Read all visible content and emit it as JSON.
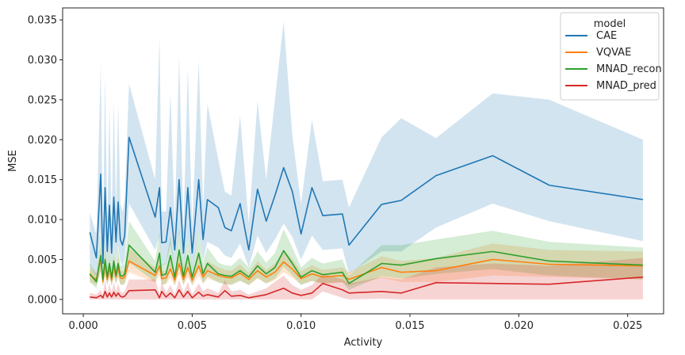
{
  "chart_data": {
    "type": "line",
    "title": "",
    "xlabel": "Activity",
    "ylabel": "MSE",
    "xlim": [
      -0.00095,
      0.02665
    ],
    "ylim": [
      -0.0018,
      0.0365
    ],
    "xticks": [
      0.0,
      0.005,
      0.01,
      0.015,
      0.02,
      0.025
    ],
    "xtick_labels": [
      "0.000",
      "0.005",
      "0.010",
      "0.015",
      "0.020",
      "0.025"
    ],
    "yticks": [
      0.0,
      0.005,
      0.01,
      0.015,
      0.02,
      0.025,
      0.03,
      0.035
    ],
    "ytick_labels": [
      "0.000",
      "0.005",
      "0.010",
      "0.015",
      "0.020",
      "0.025",
      "0.030",
      "0.035"
    ],
    "grid": false,
    "legend": {
      "title": "model",
      "position": "top-right"
    },
    "series": [
      {
        "name": "CAE",
        "color": "#1f77b4",
        "x": [
          0.0003,
          0.0006,
          0.0008,
          0.0009,
          0.001,
          0.0011,
          0.0012,
          0.0013,
          0.0014,
          0.0015,
          0.0016,
          0.0017,
          0.0018,
          0.0019,
          0.0021,
          0.0033,
          0.0035,
          0.0036,
          0.0038,
          0.004,
          0.0042,
          0.0044,
          0.0046,
          0.0048,
          0.005,
          0.0053,
          0.0055,
          0.0057,
          0.0062,
          0.0065,
          0.0068,
          0.0072,
          0.0076,
          0.008,
          0.0084,
          0.0088,
          0.0092,
          0.0096,
          0.01,
          0.0105,
          0.011,
          0.0119,
          0.0122,
          0.0137,
          0.0146,
          0.0162,
          0.0188,
          0.0214,
          0.0257
        ],
        "y": [
          0.0084,
          0.0052,
          0.0157,
          0.0045,
          0.014,
          0.006,
          0.0118,
          0.0058,
          0.0128,
          0.0072,
          0.0122,
          0.0075,
          0.0068,
          0.008,
          0.0203,
          0.0103,
          0.014,
          0.0071,
          0.0072,
          0.0115,
          0.0062,
          0.015,
          0.0058,
          0.014,
          0.0058,
          0.015,
          0.0075,
          0.0125,
          0.0115,
          0.009,
          0.0086,
          0.012,
          0.0062,
          0.0138,
          0.0098,
          0.013,
          0.0165,
          0.0135,
          0.0082,
          0.014,
          0.0105,
          0.0107,
          0.0068,
          0.0119,
          0.0124,
          0.0155,
          0.018,
          0.0143,
          0.0125
        ],
        "lower": [
          0.0042,
          0.003,
          0.0085,
          0.0028,
          0.0075,
          0.0035,
          0.0065,
          0.0035,
          0.007,
          0.0045,
          0.0068,
          0.0048,
          0.0042,
          0.005,
          0.012,
          0.0062,
          0.008,
          0.0042,
          0.0045,
          0.0068,
          0.004,
          0.0085,
          0.0036,
          0.008,
          0.0036,
          0.0085,
          0.0048,
          0.0072,
          0.0065,
          0.0055,
          0.0052,
          0.007,
          0.004,
          0.008,
          0.0058,
          0.0075,
          0.0095,
          0.0078,
          0.005,
          0.008,
          0.0062,
          0.0064,
          0.0032,
          0.006,
          0.006,
          0.009,
          0.012,
          0.0098,
          0.0073
        ],
        "upper": [
          0.0108,
          0.0082,
          0.0295,
          0.0075,
          0.028,
          0.0095,
          0.0245,
          0.0092,
          0.025,
          0.0115,
          0.0245,
          0.012,
          0.011,
          0.0125,
          0.027,
          0.015,
          0.033,
          0.011,
          0.011,
          0.026,
          0.0095,
          0.0305,
          0.009,
          0.029,
          0.009,
          0.03,
          0.0115,
          0.0245,
          0.0175,
          0.0135,
          0.013,
          0.023,
          0.0095,
          0.0248,
          0.015,
          0.025,
          0.0348,
          0.0205,
          0.012,
          0.0225,
          0.0148,
          0.015,
          0.0115,
          0.0203,
          0.0227,
          0.0202,
          0.0258,
          0.025,
          0.02
        ]
      },
      {
        "name": "VQVAE",
        "color": "#ff7f0e",
        "x": [
          0.0003,
          0.0006,
          0.0008,
          0.0009,
          0.001,
          0.0011,
          0.0012,
          0.0013,
          0.0014,
          0.0015,
          0.0016,
          0.0017,
          0.0018,
          0.0019,
          0.0021,
          0.0033,
          0.0035,
          0.0036,
          0.0038,
          0.004,
          0.0042,
          0.0044,
          0.0046,
          0.0048,
          0.005,
          0.0053,
          0.0055,
          0.0057,
          0.0062,
          0.0065,
          0.0068,
          0.0072,
          0.0076,
          0.008,
          0.0084,
          0.0088,
          0.0092,
          0.0096,
          0.01,
          0.0105,
          0.011,
          0.0119,
          0.0122,
          0.0137,
          0.0146,
          0.0162,
          0.0188,
          0.0214,
          0.0257
        ],
        "y": [
          0.003,
          0.0025,
          0.005,
          0.0022,
          0.0045,
          0.0025,
          0.004,
          0.0024,
          0.0042,
          0.0028,
          0.004,
          0.0027,
          0.0026,
          0.0028,
          0.0048,
          0.003,
          0.0042,
          0.0026,
          0.0027,
          0.0038,
          0.0024,
          0.0045,
          0.0025,
          0.004,
          0.0024,
          0.0042,
          0.0028,
          0.0036,
          0.003,
          0.0028,
          0.0027,
          0.0033,
          0.0025,
          0.0036,
          0.0028,
          0.0034,
          0.0047,
          0.0038,
          0.0026,
          0.0032,
          0.0028,
          0.003,
          0.0025,
          0.004,
          0.0034,
          0.0036,
          0.005,
          0.0044,
          0.0042
        ],
        "lower": [
          0.0022,
          0.0018,
          0.0035,
          0.0016,
          0.003,
          0.0018,
          0.0028,
          0.0017,
          0.0029,
          0.002,
          0.0028,
          0.0019,
          0.0018,
          0.002,
          0.0034,
          0.0021,
          0.003,
          0.0018,
          0.0019,
          0.0027,
          0.0017,
          0.0032,
          0.0018,
          0.0028,
          0.0017,
          0.003,
          0.002,
          0.0026,
          0.0022,
          0.002,
          0.0019,
          0.0024,
          0.0018,
          0.0026,
          0.002,
          0.0024,
          0.0034,
          0.0027,
          0.0019,
          0.0023,
          0.002,
          0.0021,
          0.0017,
          0.0027,
          0.0022,
          0.0022,
          0.003,
          0.0028,
          0.0025
        ],
        "upper": [
          0.004,
          0.0033,
          0.0068,
          0.003,
          0.0062,
          0.0033,
          0.0054,
          0.0032,
          0.0057,
          0.0037,
          0.0054,
          0.0036,
          0.0035,
          0.0037,
          0.0064,
          0.004,
          0.0056,
          0.0035,
          0.0036,
          0.0051,
          0.0032,
          0.006,
          0.0033,
          0.0053,
          0.0032,
          0.0056,
          0.0037,
          0.0048,
          0.004,
          0.0037,
          0.0036,
          0.0044,
          0.0033,
          0.0048,
          0.0037,
          0.0045,
          0.0062,
          0.005,
          0.0035,
          0.0043,
          0.0037,
          0.004,
          0.0034,
          0.0054,
          0.0048,
          0.0052,
          0.007,
          0.0062,
          0.006
        ]
      },
      {
        "name": "MNAD_recon",
        "color": "#2ca02c",
        "x": [
          0.0003,
          0.0006,
          0.0008,
          0.0009,
          0.001,
          0.0011,
          0.0012,
          0.0013,
          0.0014,
          0.0015,
          0.0016,
          0.0017,
          0.0018,
          0.0019,
          0.0021,
          0.0033,
          0.0035,
          0.0036,
          0.0038,
          0.004,
          0.0042,
          0.0044,
          0.0046,
          0.0048,
          0.005,
          0.0053,
          0.0055,
          0.0057,
          0.0062,
          0.0065,
          0.0068,
          0.0072,
          0.0076,
          0.008,
          0.0084,
          0.0088,
          0.0092,
          0.0096,
          0.01,
          0.0105,
          0.011,
          0.0119,
          0.0122,
          0.0137,
          0.0146,
          0.0162,
          0.0188,
          0.0214,
          0.0257
        ],
        "y": [
          0.0032,
          0.0022,
          0.0055,
          0.0025,
          0.005,
          0.0028,
          0.0045,
          0.0027,
          0.0048,
          0.003,
          0.0045,
          0.003,
          0.0029,
          0.0032,
          0.0068,
          0.0034,
          0.0058,
          0.003,
          0.0032,
          0.0055,
          0.0028,
          0.0062,
          0.0029,
          0.0055,
          0.0028,
          0.0058,
          0.0032,
          0.0045,
          0.0032,
          0.003,
          0.0029,
          0.0036,
          0.0028,
          0.0042,
          0.0032,
          0.004,
          0.0061,
          0.0045,
          0.0028,
          0.0036,
          0.0031,
          0.0034,
          0.002,
          0.0045,
          0.0043,
          0.0051,
          0.006,
          0.0048,
          0.0043
        ],
        "lower": [
          0.0022,
          0.0014,
          0.0036,
          0.0016,
          0.0032,
          0.0018,
          0.0029,
          0.0017,
          0.003,
          0.0019,
          0.0029,
          0.0019,
          0.0018,
          0.002,
          0.0046,
          0.0022,
          0.0038,
          0.0019,
          0.002,
          0.0036,
          0.0018,
          0.0041,
          0.0018,
          0.0036,
          0.0018,
          0.0038,
          0.002,
          0.0029,
          0.0021,
          0.0019,
          0.0018,
          0.0023,
          0.0018,
          0.0027,
          0.002,
          0.0026,
          0.0041,
          0.003,
          0.0018,
          0.0023,
          0.002,
          0.0022,
          0.0012,
          0.0029,
          0.0026,
          0.0032,
          0.0038,
          0.003,
          0.0025
        ],
        "upper": [
          0.0045,
          0.0032,
          0.0082,
          0.0036,
          0.0075,
          0.004,
          0.0066,
          0.0038,
          0.007,
          0.0043,
          0.0066,
          0.0043,
          0.0042,
          0.0046,
          0.0098,
          0.0048,
          0.0085,
          0.0043,
          0.0046,
          0.008,
          0.004,
          0.009,
          0.0041,
          0.008,
          0.004,
          0.0085,
          0.0046,
          0.0065,
          0.0046,
          0.0043,
          0.0042,
          0.0052,
          0.004,
          0.006,
          0.0046,
          0.0058,
          0.0088,
          0.0065,
          0.004,
          0.0052,
          0.0045,
          0.005,
          0.003,
          0.0068,
          0.0068,
          0.0075,
          0.0086,
          0.0072,
          0.0065
        ]
      },
      {
        "name": "MNAD_pred",
        "color": "#d62728",
        "x": [
          0.0003,
          0.0006,
          0.0008,
          0.0009,
          0.001,
          0.0011,
          0.0012,
          0.0013,
          0.0014,
          0.0015,
          0.0016,
          0.0017,
          0.0018,
          0.0019,
          0.0021,
          0.0033,
          0.0035,
          0.0036,
          0.0038,
          0.004,
          0.0042,
          0.0044,
          0.0046,
          0.0048,
          0.005,
          0.0053,
          0.0055,
          0.0057,
          0.0062,
          0.0065,
          0.0068,
          0.0072,
          0.0076,
          0.008,
          0.0084,
          0.0088,
          0.0092,
          0.0096,
          0.01,
          0.0105,
          0.011,
          0.0119,
          0.0122,
          0.0137,
          0.0146,
          0.0162,
          0.0188,
          0.0214,
          0.0257
        ],
        "y": [
          0.0003,
          0.0002,
          0.0005,
          0.0002,
          0.001,
          0.0003,
          0.0008,
          0.0003,
          0.0009,
          0.0004,
          0.0008,
          0.0004,
          0.0003,
          0.0004,
          0.0011,
          0.0012,
          0.0002,
          0.001,
          0.0003,
          0.0008,
          0.0002,
          0.0012,
          0.0003,
          0.001,
          0.0002,
          0.0009,
          0.0004,
          0.0006,
          0.0003,
          0.0011,
          0.0004,
          0.0005,
          0.0002,
          0.0004,
          0.0006,
          0.001,
          0.0014,
          0.0008,
          0.0005,
          0.0008,
          0.002,
          0.0012,
          0.0008,
          0.001,
          0.0008,
          0.0021,
          0.002,
          0.0019,
          0.0028
        ],
        "lower": [
          0.0,
          0.0,
          0.0,
          0.0,
          0.0,
          0.0,
          0.0,
          0.0,
          0.0,
          0.0,
          0.0,
          0.0,
          0.0,
          0.0,
          0.0,
          0.0,
          0.0,
          0.0,
          0.0,
          0.0,
          0.0,
          0.0,
          0.0,
          0.0,
          0.0,
          0.0,
          0.0,
          0.0,
          0.0,
          0.0,
          0.0,
          0.0,
          0.0,
          0.0,
          0.0,
          0.0,
          0.0,
          0.0,
          0.0,
          0.0,
          0.001,
          0.0002,
          0.0,
          0.0001,
          0.0,
          0.0,
          0.0,
          0.0,
          0.0
        ],
        "upper": [
          0.0008,
          0.0006,
          0.0012,
          0.0006,
          0.0025,
          0.0008,
          0.002,
          0.0008,
          0.0022,
          0.001,
          0.002,
          0.001,
          0.0008,
          0.001,
          0.0025,
          0.0025,
          0.0006,
          0.0022,
          0.0008,
          0.0018,
          0.0006,
          0.0025,
          0.0008,
          0.0022,
          0.0006,
          0.002,
          0.001,
          0.0014,
          0.0008,
          0.0024,
          0.001,
          0.0012,
          0.0006,
          0.001,
          0.0014,
          0.0022,
          0.003,
          0.0018,
          0.0012,
          0.0018,
          0.0032,
          0.0025,
          0.002,
          0.0028,
          0.0025,
          0.004,
          0.0045,
          0.0042,
          0.0052
        ]
      }
    ]
  }
}
